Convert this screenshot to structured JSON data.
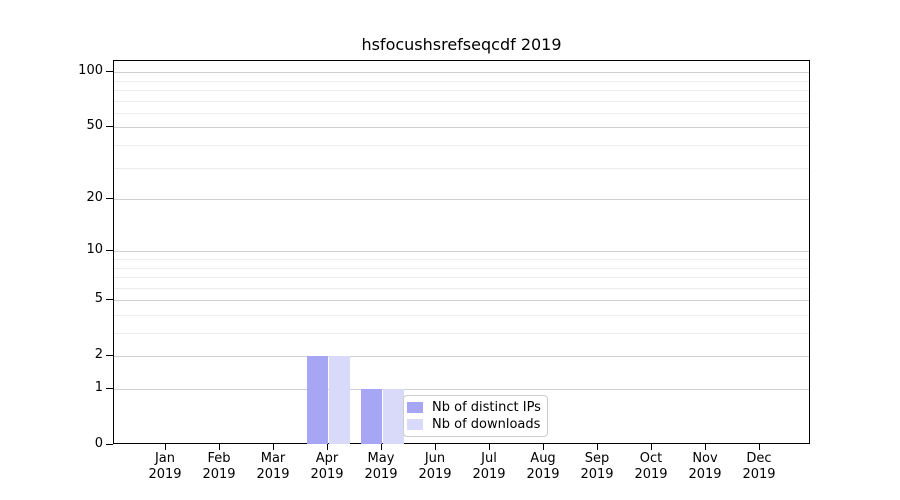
{
  "figure": {
    "title": "hsfocushsrefseqcdf 2019"
  },
  "chart_data": {
    "type": "bar",
    "title": "hsfocushsrefseqcdf 2019",
    "x_categories": [
      {
        "month": "Jan",
        "year": "2019"
      },
      {
        "month": "Feb",
        "year": "2019"
      },
      {
        "month": "Mar",
        "year": "2019"
      },
      {
        "month": "Apr",
        "year": "2019"
      },
      {
        "month": "May",
        "year": "2019"
      },
      {
        "month": "Jun",
        "year": "2019"
      },
      {
        "month": "Jul",
        "year": "2019"
      },
      {
        "month": "Aug",
        "year": "2019"
      },
      {
        "month": "Sep",
        "year": "2019"
      },
      {
        "month": "Oct",
        "year": "2019"
      },
      {
        "month": "Nov",
        "year": "2019"
      },
      {
        "month": "Dec",
        "year": "2019"
      }
    ],
    "series": [
      {
        "name": "Nb of distinct IPs",
        "color": "#a6a6f5",
        "values": [
          0,
          0,
          0,
          2,
          1,
          0,
          0,
          0,
          0,
          0,
          0,
          0
        ]
      },
      {
        "name": "Nb of downloads",
        "color": "#d9d9fa",
        "values": [
          0,
          0,
          0,
          2,
          1,
          0,
          0,
          0,
          0,
          0,
          0,
          0
        ]
      }
    ],
    "y_axis": {
      "scale": "log1p",
      "major_ticks": [
        0,
        1,
        2,
        5,
        10,
        20,
        50,
        100
      ],
      "minor_gridlines": [
        3,
        4,
        6,
        7,
        8,
        9,
        30,
        40,
        60,
        70,
        80,
        90
      ],
      "ylim": [
        0,
        115
      ]
    },
    "xlabel": "",
    "ylabel": "",
    "grid": true,
    "legend": {
      "position": "lower-center-inside",
      "items": [
        "Nb of distinct IPs",
        "Nb of downloads"
      ]
    },
    "colors": {
      "major_grid": "#d0d0d0",
      "minor_grid": "#ededed",
      "spine": "#000000",
      "background": "#ffffff"
    }
  }
}
